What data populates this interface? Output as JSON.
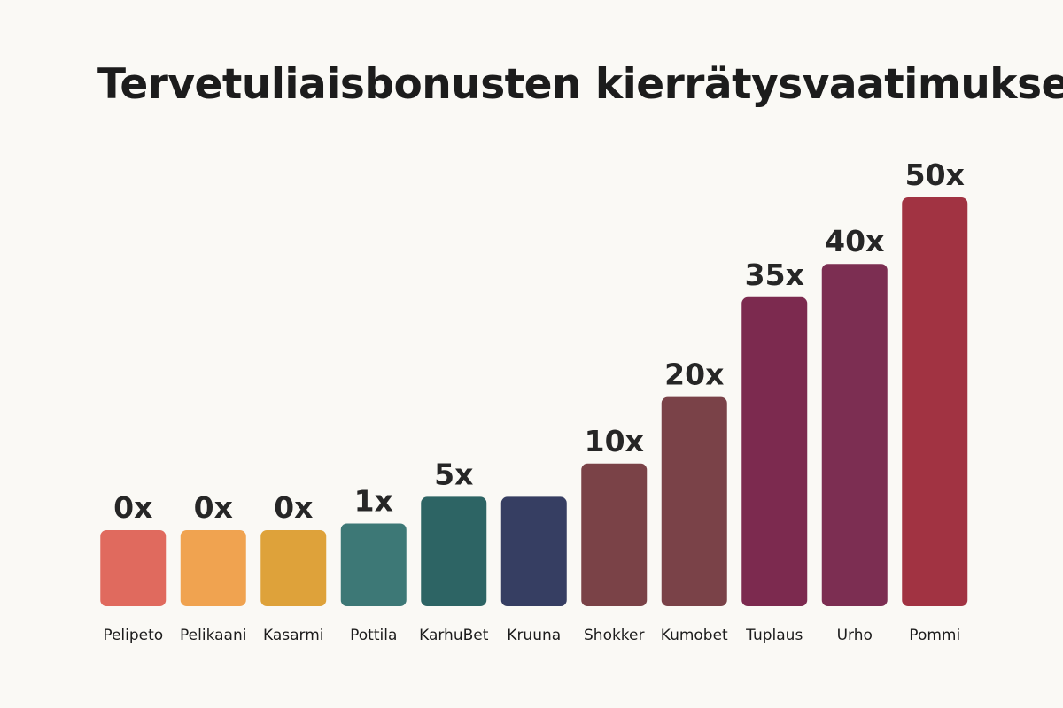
{
  "chart_data": {
    "type": "bar",
    "title": "Tervetuliaisbonusten kierrätysvaatimukset",
    "xlabel": "",
    "ylabel": "",
    "grid": false,
    "legend": "none",
    "categories": [
      "Pelipeto",
      "Pelikaani",
      "Kasarmi",
      "Pottila",
      "KarhuBet",
      "Kruuna",
      "Shokker",
      "Kumobet",
      "Tuplaus",
      "Urho",
      "Pommi"
    ],
    "values": [
      0,
      0,
      0,
      1,
      5,
      5,
      10,
      20,
      35,
      40,
      50
    ],
    "value_labels": [
      "0x",
      "0x",
      "0x",
      "1x",
      "5x",
      "",
      "10x",
      "20x",
      "35x",
      "40x",
      "50x"
    ],
    "colors": [
      "#e06a5e",
      "#f0a350",
      "#dea23a",
      "#3d7876",
      "#2d6464",
      "#363e62",
      "#7a4247",
      "#7a4248",
      "#7c2a4f",
      "#7c2e52",
      "#a13342"
    ]
  }
}
